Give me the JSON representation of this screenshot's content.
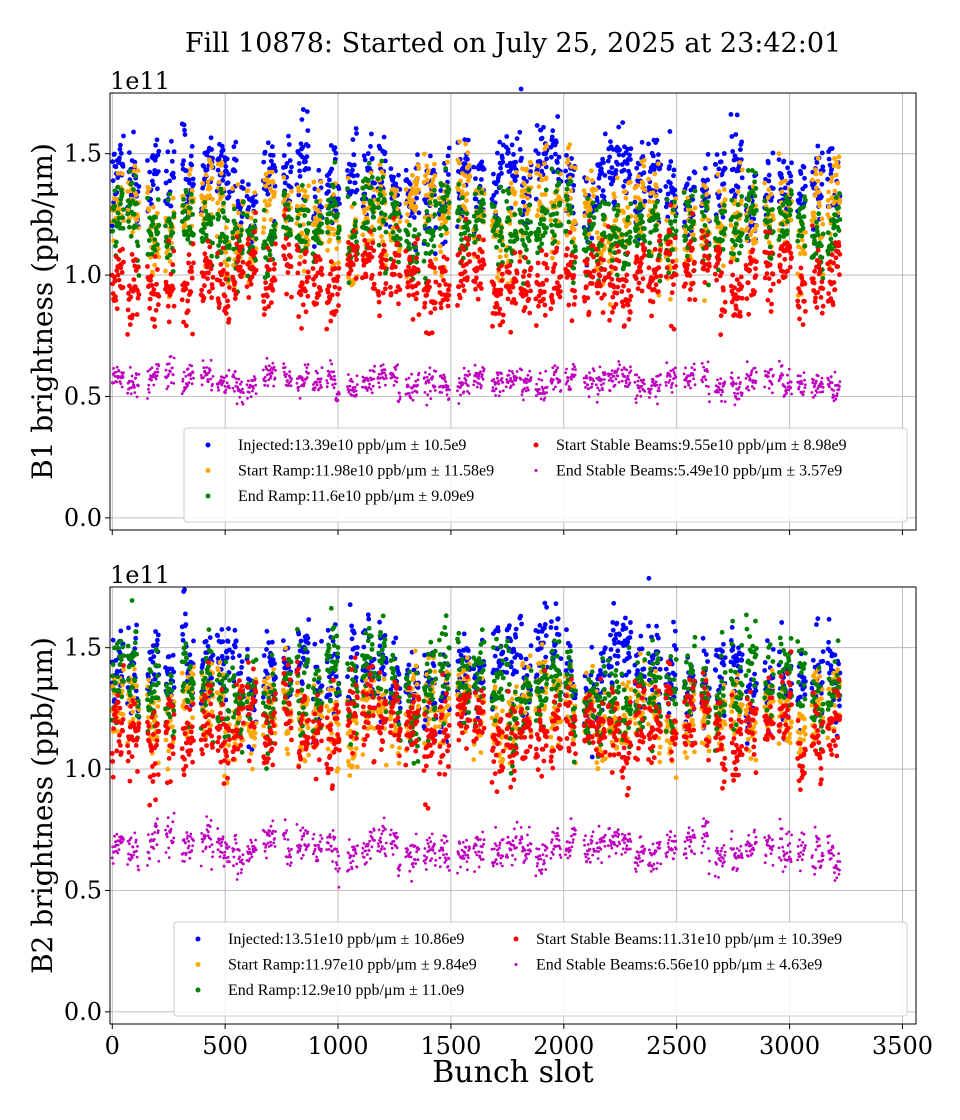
{
  "title": "Fill 10878: Started on July 25, 2025 at 23:42:01",
  "chart_data": [
    {
      "type": "scatter",
      "ylabel": "B1 brightness (ppb/μm)",
      "offset_label": "1e11",
      "xlabel": "",
      "xlim": [
        -10,
        3560
      ],
      "ylim": [
        -0.05,
        1.75
      ],
      "y_unit_multiplier": 100000000000.0,
      "yticks": [
        "0.0",
        "0.5",
        "1.0",
        "1.5"
      ],
      "grid": true,
      "legend_position": "bottom-right",
      "bunch_slot_range": [
        0,
        3230
      ],
      "series": [
        {
          "name": "Injected:13.39e10 ppb/μm ± 10.5e9",
          "color": "#0000ff",
          "mean": 1.339,
          "std": 0.105
        },
        {
          "name": "Start Ramp:11.98e10 ppb/μm ± 11.58e9",
          "color": "#ffa500",
          "mean": 1.198,
          "std": 0.1158
        },
        {
          "name": "End Ramp:11.6e10 ppb/μm ± 9.09e9",
          "color": "#008000",
          "mean": 1.16,
          "std": 0.0909
        },
        {
          "name": "Start Stable Beams:9.55e10 ppb/μm ± 8.98e9",
          "color": "#ff0000",
          "mean": 0.955,
          "std": 0.0898
        },
        {
          "name": "End Stable Beams:5.49e10 ppb/μm ± 3.57e9",
          "color": "#bf00bf",
          "mean": 0.549,
          "std": 0.0357
        }
      ]
    },
    {
      "type": "scatter",
      "ylabel": "B2 brightness (ppb/μm)",
      "offset_label": "1e11",
      "xlabel": "Bunch slot",
      "xlim": [
        -10,
        3560
      ],
      "ylim": [
        -0.05,
        1.75
      ],
      "y_unit_multiplier": 100000000000.0,
      "xticks": [
        "0",
        "500",
        "1000",
        "1500",
        "2000",
        "2500",
        "3000",
        "3500"
      ],
      "yticks": [
        "0.0",
        "0.5",
        "1.0",
        "1.5"
      ],
      "grid": true,
      "legend_position": "bottom-right",
      "bunch_slot_range": [
        0,
        3230
      ],
      "series": [
        {
          "name": "Injected:13.51e10 ppb/μm ± 10.86e9",
          "color": "#0000ff",
          "mean": 1.351,
          "std": 0.1086
        },
        {
          "name": "Start Ramp:11.97e10 ppb/μm ± 9.84e9",
          "color": "#ffa500",
          "mean": 1.197,
          "std": 0.0984
        },
        {
          "name": "End Ramp:12.9e10 ppb/μm ± 11.0e9",
          "color": "#008000",
          "mean": 1.29,
          "std": 0.11
        },
        {
          "name": "Start Stable Beams:11.31e10 ppb/μm ± 10.39e9",
          "color": "#ff0000",
          "mean": 1.131,
          "std": 0.1039
        },
        {
          "name": "End Stable Beams:6.56e10 ppb/μm ± 4.63e9",
          "color": "#bf00bf",
          "mean": 0.656,
          "std": 0.0463
        }
      ]
    }
  ]
}
